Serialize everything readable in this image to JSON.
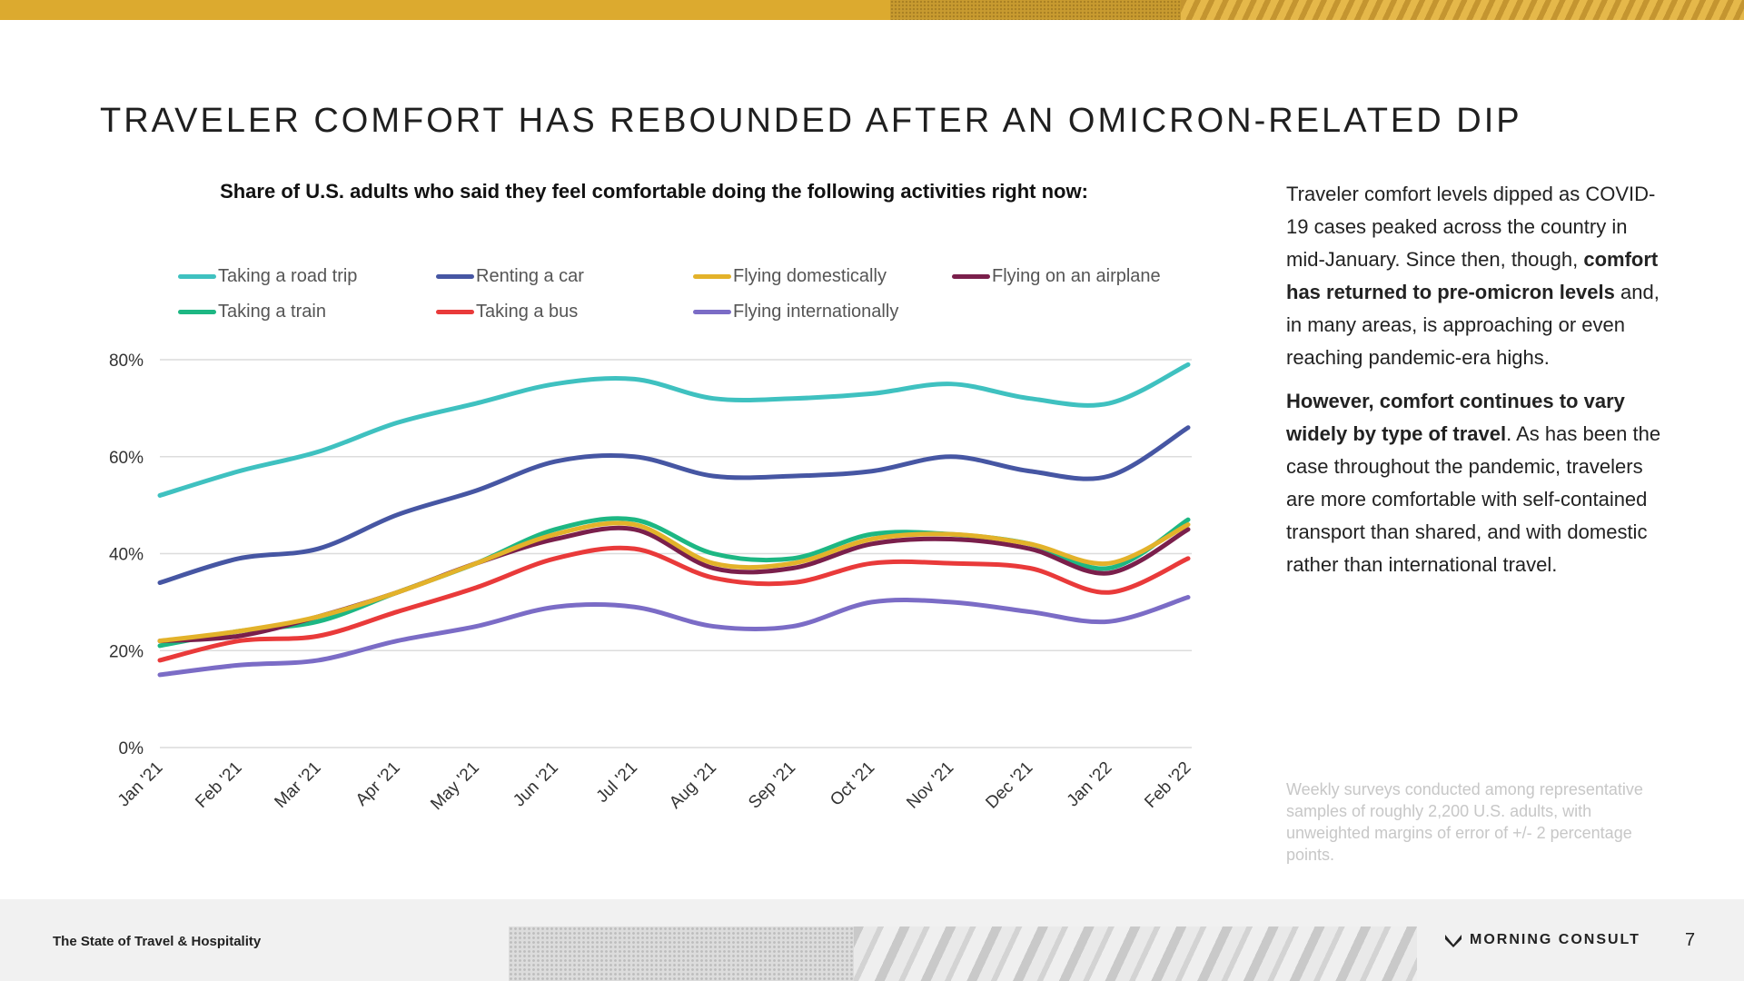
{
  "header": {
    "title": "TRAVELER COMFORT HAS REBOUNDED AFTER AN OMICRON-RELATED DIP"
  },
  "chart_data": {
    "type": "line",
    "title": "Share of U.S. adults who said they feel comfortable doing the following activities right now:",
    "xlabel": "",
    "ylabel": "",
    "ylim": [
      0,
      80
    ],
    "yticks": [
      "0%",
      "20%",
      "40%",
      "60%",
      "80%"
    ],
    "grid": true,
    "legend_position": "top",
    "categories": [
      "Jan '21",
      "Feb '21",
      "Mar '21",
      "Apr '21",
      "May '21",
      "Jun '21",
      "Jul '21",
      "Aug '21",
      "Sep '21",
      "Oct '21",
      "Nov '21",
      "Dec '21",
      "Jan '22",
      "Feb '22"
    ],
    "series": [
      {
        "name": "Taking a road trip",
        "color": "#3fc1c0",
        "values": [
          52,
          57,
          61,
          67,
          71,
          75,
          76,
          72,
          72,
          73,
          75,
          72,
          71,
          79
        ]
      },
      {
        "name": "Renting a car",
        "color": "#4656a3",
        "values": [
          34,
          39,
          41,
          48,
          53,
          59,
          60,
          56,
          56,
          57,
          60,
          57,
          56,
          66
        ]
      },
      {
        "name": "Flying domestically",
        "color": "#e3b22a",
        "values": [
          22,
          24,
          27,
          32,
          38,
          44,
          46,
          38,
          38,
          43,
          44,
          42,
          38,
          46
        ]
      },
      {
        "name": "Flying on an airplane",
        "color": "#7a1f4b",
        "values": [
          22,
          23,
          27,
          32,
          38,
          43,
          45,
          37,
          37,
          42,
          43,
          41,
          36,
          45
        ]
      },
      {
        "name": "Taking a train",
        "color": "#1db783",
        "values": [
          21,
          24,
          26,
          32,
          38,
          45,
          47,
          40,
          39,
          44,
          44,
          42,
          37,
          47
        ]
      },
      {
        "name": "Taking a bus",
        "color": "#e93a3a",
        "values": [
          18,
          22,
          23,
          28,
          33,
          39,
          41,
          35,
          34,
          38,
          38,
          37,
          32,
          39
        ]
      },
      {
        "name": "Flying internationally",
        "color": "#7b6cc6",
        "values": [
          15,
          17,
          18,
          22,
          25,
          29,
          29,
          25,
          25,
          30,
          30,
          28,
          26,
          31
        ]
      }
    ]
  },
  "sidebar": {
    "p1_a": "Traveler comfort levels dipped as COVID-19 cases peaked across the country in mid-January. Since then, though, ",
    "p1_b": "comfort has returned to pre-omicron levels",
    "p1_c": " and, in many areas, is approaching or even reaching pandemic-era highs.",
    "p2_a": "However, comfort continues to vary widely by type of travel",
    "p2_b": ". As has been the case throughout the pandemic, travelers are more comfortable with self-contained transport than shared, and with domestic rather than international travel.",
    "footnote": "Weekly surveys conducted among representative samples of roughly 2,200 U.S. adults, with unweighted margins of error of +/- 2 percentage points."
  },
  "footer": {
    "left_text": "The State of Travel & Hospitality",
    "brand": "MORNING CONSULT",
    "page_number": "7"
  }
}
